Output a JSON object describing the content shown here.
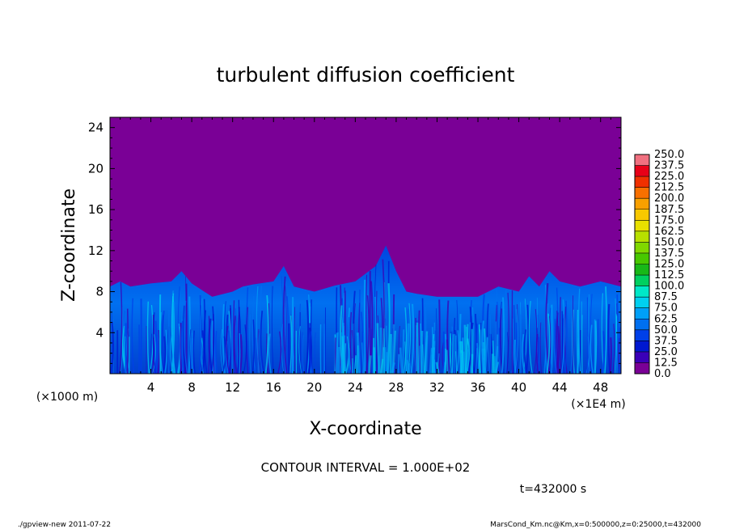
{
  "chart_data": {
    "type": "heatmap",
    "title": "turbulent diffusion coefficient",
    "xlabel": "X-coordinate",
    "ylabel": "Z-coordinate",
    "xunit": "(×1E4 m)",
    "yunit": "(×1000 m)",
    "xlim": [
      0,
      50
    ],
    "ylim": [
      0,
      25
    ],
    "xticks": [
      "4",
      "8",
      "12",
      "16",
      "20",
      "24",
      "28",
      "32",
      "36",
      "40",
      "44",
      "48"
    ],
    "yticks": [
      "4",
      "8",
      "12",
      "16",
      "20",
      "24"
    ],
    "contour_interval_label": "CONTOUR INTERVAL = 1.000E+02",
    "time_label": "t=432000 s",
    "colorbar": {
      "levels": [
        "0.0",
        "12.5",
        "25.0",
        "37.5",
        "50.0",
        "62.5",
        "75.0",
        "87.5",
        "100.0",
        "112.5",
        "125.0",
        "137.5",
        "150.0",
        "162.5",
        "175.0",
        "187.5",
        "200.0",
        "212.5",
        "225.0",
        "237.5",
        "250.0"
      ],
      "colors": [
        "#7a0096",
        "#3a00b8",
        "#0018d0",
        "#0040e8",
        "#0070f0",
        "#00a0f8",
        "#00d0f0",
        "#00e8c8",
        "#00d060",
        "#18b818",
        "#48c800",
        "#80d800",
        "#b8e000",
        "#e8e000",
        "#f8c800",
        "#f8a000",
        "#f87000",
        "#f03000",
        "#e80018",
        "#f07080"
      ]
    },
    "field_envelope": {
      "description_units": "upper envelope height (×1000 m) of turbulent region vs x (×1E4 m)",
      "x": [
        0,
        1,
        2,
        4,
        6,
        7,
        8,
        10,
        12,
        13,
        14,
        16,
        17,
        18,
        20,
        22,
        24,
        26,
        27,
        28,
        29,
        30,
        32,
        34,
        36,
        38,
        40,
        41,
        42,
        43,
        44,
        46,
        48,
        50
      ],
      "z": [
        8.5,
        9.0,
        8.5,
        8.8,
        9.0,
        10.0,
        8.8,
        7.5,
        8.0,
        8.5,
        8.7,
        9.0,
        10.5,
        8.5,
        8.0,
        8.6,
        9.0,
        10.5,
        12.5,
        10.0,
        8.0,
        7.8,
        7.5,
        7.5,
        7.5,
        8.5,
        8.0,
        9.5,
        8.5,
        10.0,
        9.0,
        8.5,
        9.0,
        8.5
      ]
    }
  },
  "footer": {
    "left": "./gpview-new   2011-07-22",
    "right": "MarsCond_Km.nc@Km,x=0:500000,z=0:25000,t=432000"
  }
}
